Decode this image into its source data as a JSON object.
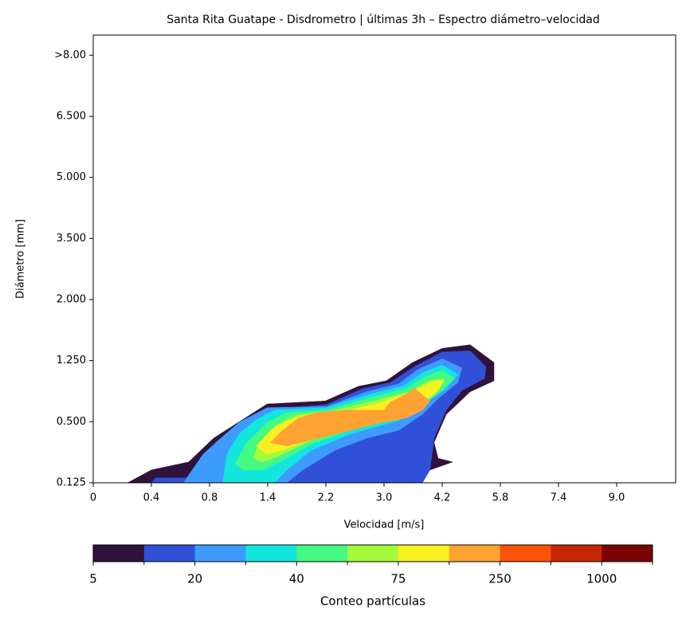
{
  "chart_data": {
    "type": "contourf",
    "title": "Santa Rita Guatape - Disdrometro | últimas 3h – Espectro diámetro–velocidad",
    "x_label": "Velocidad [m/s]",
    "y_label": "Diámetro [mm]",
    "xlim": [
      0,
      10
    ],
    "xticks": [
      {
        "value": 0,
        "label": "0"
      },
      {
        "value": 1,
        "label": "0.4"
      },
      {
        "value": 2,
        "label": "0.8"
      },
      {
        "value": 3,
        "label": "1.4"
      },
      {
        "value": 4,
        "label": "2.2"
      },
      {
        "value": 5,
        "label": "3.0"
      },
      {
        "value": 6,
        "label": "4.2"
      },
      {
        "value": 7,
        "label": "5.8"
      },
      {
        "value": 8,
        "label": "7.4"
      },
      {
        "value": 9,
        "label": "9.0"
      }
    ],
    "ylim": [
      0,
      7.33
    ],
    "yticks": [
      {
        "value": 0,
        "label": "0.125"
      },
      {
        "value": 1,
        "label": "0.500"
      },
      {
        "value": 2,
        "label": "1.250"
      },
      {
        "value": 3,
        "label": "2.000"
      },
      {
        "value": 4,
        "label": "3.500"
      },
      {
        "value": 5,
        "label": "5.000"
      },
      {
        "value": 6,
        "label": "6.500"
      },
      {
        "value": 7,
        "label": ">8.00"
      }
    ],
    "contours": [
      {
        "x": [
          0.59,
          1.0,
          1.64,
          2.07,
          2.99,
          3.99,
          4.56,
          5.04,
          5.49,
          6.0,
          6.48,
          6.89,
          6.89,
          6.48,
          6.07,
          5.86,
          5.93,
          6.18,
          5.79,
          5.52
        ],
        "y": [
          0,
          0.21,
          0.34,
          0.73,
          1.29,
          1.34,
          1.58,
          1.67,
          1.97,
          2.2,
          2.26,
          1.97,
          1.67,
          1.49,
          1.12,
          0.66,
          0.4,
          0.34,
          0.21,
          0
        ]
      },
      {
        "x": [
          1.0,
          1.07,
          1.68,
          2.1,
          2.1,
          2.37,
          2.92,
          4.01,
          4.63,
          5.11,
          5.52,
          6.0,
          6.48,
          6.75,
          6.73,
          6.34,
          6.07,
          5.86,
          5.79,
          5.66
        ],
        "y": [
          0,
          0.08,
          0.08,
          0.34,
          0.66,
          0.86,
          1.19,
          1.28,
          1.54,
          1.64,
          1.9,
          2.14,
          2.16,
          1.9,
          1.71,
          1.51,
          1.19,
          0.73,
          0.21,
          0
        ]
      },
      {
        "x": [
          1.55,
          1.89,
          2.23,
          2.51,
          2.99,
          4.01,
          4.7,
          5.25,
          5.59,
          6.0,
          6.34,
          6.27,
          5.93,
          5.66,
          5.25,
          4.7,
          4.15,
          3.6,
          3.33
        ],
        "y": [
          0,
          0.47,
          0.76,
          0.99,
          1.23,
          1.25,
          1.49,
          1.62,
          1.86,
          2.03,
          1.88,
          1.64,
          1.38,
          1.12,
          0.86,
          0.73,
          0.53,
          0.21,
          0
        ]
      },
      {
        "x": [
          2.23,
          2.3,
          2.51,
          2.78,
          3.12,
          4.01,
          4.77,
          5.32,
          5.66,
          6.0,
          6.27,
          6.07,
          5.73,
          5.25,
          4.42,
          3.74,
          3.33,
          3.12
        ],
        "y": [
          0,
          0.47,
          0.8,
          1.02,
          1.19,
          1.23,
          1.45,
          1.58,
          1.8,
          1.93,
          1.77,
          1.54,
          1.32,
          1.02,
          0.8,
          0.53,
          0.21,
          0
        ]
      },
      {
        "x": [
          2.44,
          2.64,
          2.99,
          3.33,
          4.01,
          4.84,
          5.38,
          5.73,
          6.0,
          6.21,
          6.0,
          5.66,
          5.25,
          4.42,
          3.74,
          3.26,
          2.92,
          2.58
        ],
        "y": [
          0.31,
          0.66,
          0.99,
          1.15,
          1.19,
          1.41,
          1.54,
          1.75,
          1.84,
          1.71,
          1.51,
          1.28,
          1.06,
          0.86,
          0.63,
          0.37,
          0.21,
          0.21
        ]
      },
      {
        "x": [
          2.75,
          2.85,
          3.12,
          3.53,
          4.01,
          4.9,
          5.45,
          5.77,
          6.04,
          5.93,
          5.59,
          5.18,
          4.42,
          3.74,
          3.19,
          2.92
        ],
        "y": [
          0.4,
          0.66,
          0.93,
          1.12,
          1.15,
          1.36,
          1.49,
          1.67,
          1.71,
          1.49,
          1.25,
          1.06,
          0.89,
          0.69,
          0.44,
          0.34
        ]
      },
      {
        "x": [
          2.81,
          3.05,
          3.33,
          3.81,
          4.42,
          4.97,
          5.52,
          5.86,
          6.04,
          5.86,
          5.52,
          5.11,
          4.42,
          3.81,
          3.26,
          2.99
        ],
        "y": [
          0.6,
          0.86,
          1.02,
          1.15,
          1.19,
          1.32,
          1.51,
          1.67,
          1.67,
          1.45,
          1.23,
          1.06,
          0.93,
          0.76,
          0.53,
          0.47
        ]
      },
      {
        "x": [
          3.05,
          3.26,
          3.53,
          3.88,
          4.42,
          5.0,
          5.11,
          5.45,
          5.52,
          5.79,
          5.66,
          5.38,
          4.97,
          4.42,
          3.74,
          3.33
        ],
        "y": [
          0.66,
          0.86,
          1.06,
          1.16,
          1.19,
          1.19,
          1.32,
          1.49,
          1.55,
          1.34,
          1.19,
          1.06,
          0.99,
          0.86,
          0.7,
          0.6
        ]
      }
    ],
    "colorbar": {
      "label": "Conteo partículas",
      "levels": [
        5,
        null,
        20,
        null,
        40,
        null,
        75,
        null,
        250,
        null,
        1000,
        null
      ],
      "colors": [
        "#30123b",
        "#3050d8",
        "#3e9bfe",
        "#13e6dc",
        "#46f884",
        "#a2fc3c",
        "#f8f022",
        "#fea332",
        "#fb5208",
        "#c52603",
        "#7a0403"
      ]
    }
  }
}
